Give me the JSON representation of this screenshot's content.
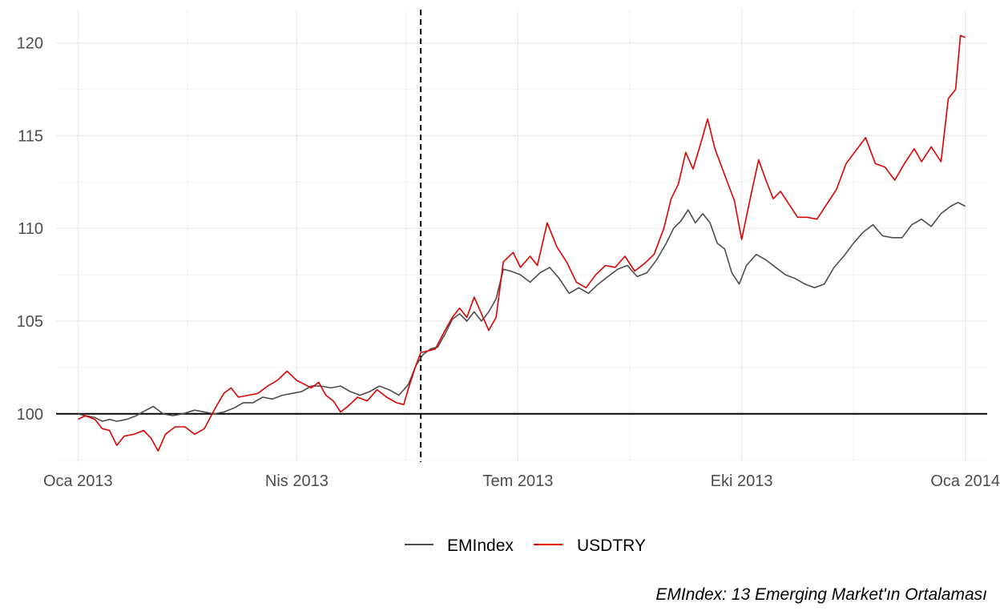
{
  "chart_data": {
    "type": "line",
    "title": "",
    "xlabel": "",
    "ylabel": "",
    "xlim": [
      "2012-12-23",
      "2014-01-10"
    ],
    "ylim": [
      97.4,
      121.8
    ],
    "y_ticks": [
      100,
      105,
      110,
      115,
      120
    ],
    "x_ticks": [
      {
        "date": "2013-01-01",
        "label": "Oca 2013"
      },
      {
        "date": "2013-04-01",
        "label": "Nis 2013"
      },
      {
        "date": "2013-07-01",
        "label": "Tem 2013"
      },
      {
        "date": "2013-10-01",
        "label": "Eki 2013"
      },
      {
        "date": "2014-01-01",
        "label": "Oca 2014"
      }
    ],
    "x_minor_ticks": [
      "2013-02-15",
      "2013-05-16",
      "2013-08-16",
      "2013-11-16"
    ],
    "grid": true,
    "reference_hline": 100,
    "reference_vline": "2013-05-22",
    "legend_position": "bottom",
    "caption": "EMIndex: 13 Emerging Market'ın Ortalaması",
    "series": [
      {
        "name": "EMIndex",
        "color": "#4d4d4d",
        "points": [
          [
            "2013-01-01",
            100.0
          ],
          [
            "2013-01-04",
            99.9
          ],
          [
            "2013-01-08",
            99.8
          ],
          [
            "2013-01-11",
            99.6
          ],
          [
            "2013-01-14",
            99.7
          ],
          [
            "2013-01-17",
            99.6
          ],
          [
            "2013-01-21",
            99.7
          ],
          [
            "2013-01-25",
            99.9
          ],
          [
            "2013-01-29",
            100.2
          ],
          [
            "2013-02-01",
            100.4
          ],
          [
            "2013-02-05",
            100.0
          ],
          [
            "2013-02-09",
            99.9
          ],
          [
            "2013-02-13",
            100.0
          ],
          [
            "2013-02-18",
            100.2
          ],
          [
            "2013-02-22",
            100.1
          ],
          [
            "2013-02-26",
            100.0
          ],
          [
            "2013-03-02",
            100.1
          ],
          [
            "2013-03-06",
            100.3
          ],
          [
            "2013-03-10",
            100.6
          ],
          [
            "2013-03-14",
            100.6
          ],
          [
            "2013-03-18",
            100.9
          ],
          [
            "2013-03-22",
            100.8
          ],
          [
            "2013-03-26",
            101.0
          ],
          [
            "2013-03-30",
            101.1
          ],
          [
            "2013-04-03",
            101.2
          ],
          [
            "2013-04-07",
            101.5
          ],
          [
            "2013-04-11",
            101.5
          ],
          [
            "2013-04-15",
            101.4
          ],
          [
            "2013-04-19",
            101.5
          ],
          [
            "2013-04-23",
            101.2
          ],
          [
            "2013-04-27",
            101.0
          ],
          [
            "2013-05-01",
            101.2
          ],
          [
            "2013-05-05",
            101.5
          ],
          [
            "2013-05-09",
            101.3
          ],
          [
            "2013-05-13",
            101.0
          ],
          [
            "2013-05-17",
            101.6
          ],
          [
            "2013-05-20",
            102.6
          ],
          [
            "2013-05-23",
            103.2
          ],
          [
            "2013-05-26",
            103.5
          ],
          [
            "2013-05-29",
            103.6
          ],
          [
            "2013-06-01",
            104.3
          ],
          [
            "2013-06-04",
            105.1
          ],
          [
            "2013-06-07",
            105.4
          ],
          [
            "2013-06-10",
            105.0
          ],
          [
            "2013-06-13",
            105.5
          ],
          [
            "2013-06-16",
            105.0
          ],
          [
            "2013-06-19",
            105.5
          ],
          [
            "2013-06-22",
            106.2
          ],
          [
            "2013-06-25",
            107.8
          ],
          [
            "2013-06-28",
            107.7
          ],
          [
            "2013-07-02",
            107.5
          ],
          [
            "2013-07-06",
            107.1
          ],
          [
            "2013-07-10",
            107.6
          ],
          [
            "2013-07-14",
            107.9
          ],
          [
            "2013-07-18",
            107.3
          ],
          [
            "2013-07-22",
            106.5
          ],
          [
            "2013-07-26",
            106.8
          ],
          [
            "2013-07-30",
            106.5
          ],
          [
            "2013-08-03",
            107.0
          ],
          [
            "2013-08-07",
            107.4
          ],
          [
            "2013-08-11",
            107.8
          ],
          [
            "2013-08-15",
            108.0
          ],
          [
            "2013-08-19",
            107.4
          ],
          [
            "2013-08-23",
            107.6
          ],
          [
            "2013-08-27",
            108.3
          ],
          [
            "2013-08-31",
            109.2
          ],
          [
            "2013-09-03",
            110.0
          ],
          [
            "2013-09-06",
            110.4
          ],
          [
            "2013-09-09",
            111.0
          ],
          [
            "2013-09-12",
            110.3
          ],
          [
            "2013-09-15",
            110.8
          ],
          [
            "2013-09-18",
            110.3
          ],
          [
            "2013-09-21",
            109.2
          ],
          [
            "2013-09-24",
            108.9
          ],
          [
            "2013-09-27",
            107.6
          ],
          [
            "2013-09-30",
            107.0
          ],
          [
            "2013-10-03",
            108.0
          ],
          [
            "2013-10-07",
            108.6
          ],
          [
            "2013-10-11",
            108.3
          ],
          [
            "2013-10-15",
            107.9
          ],
          [
            "2013-10-19",
            107.5
          ],
          [
            "2013-10-23",
            107.3
          ],
          [
            "2013-10-27",
            107.0
          ],
          [
            "2013-10-31",
            106.8
          ],
          [
            "2013-11-04",
            107.0
          ],
          [
            "2013-11-08",
            107.9
          ],
          [
            "2013-11-12",
            108.5
          ],
          [
            "2013-11-16",
            109.2
          ],
          [
            "2013-11-20",
            109.8
          ],
          [
            "2013-11-24",
            110.2
          ],
          [
            "2013-11-28",
            109.6
          ],
          [
            "2013-12-02",
            109.5
          ],
          [
            "2013-12-06",
            109.5
          ],
          [
            "2013-12-10",
            110.2
          ],
          [
            "2013-12-14",
            110.5
          ],
          [
            "2013-12-18",
            110.1
          ],
          [
            "2013-12-22",
            110.8
          ],
          [
            "2013-12-26",
            111.2
          ],
          [
            "2013-12-29",
            111.4
          ],
          [
            "2014-01-01",
            111.2
          ]
        ]
      },
      {
        "name": "USDTRY",
        "color": "#dd0000",
        "points": [
          [
            "2013-01-01",
            99.7
          ],
          [
            "2013-01-04",
            99.9
          ],
          [
            "2013-01-08",
            99.7
          ],
          [
            "2013-01-11",
            99.2
          ],
          [
            "2013-01-14",
            99.1
          ],
          [
            "2013-01-17",
            98.3
          ],
          [
            "2013-01-20",
            98.8
          ],
          [
            "2013-01-24",
            98.9
          ],
          [
            "2013-01-28",
            99.1
          ],
          [
            "2013-01-31",
            98.7
          ],
          [
            "2013-02-03",
            98.0
          ],
          [
            "2013-02-06",
            98.9
          ],
          [
            "2013-02-10",
            99.3
          ],
          [
            "2013-02-14",
            99.3
          ],
          [
            "2013-02-18",
            98.9
          ],
          [
            "2013-02-22",
            99.2
          ],
          [
            "2013-02-26",
            100.2
          ],
          [
            "2013-03-02",
            101.1
          ],
          [
            "2013-03-05",
            101.4
          ],
          [
            "2013-03-08",
            100.9
          ],
          [
            "2013-03-12",
            101.0
          ],
          [
            "2013-03-16",
            101.1
          ],
          [
            "2013-03-20",
            101.5
          ],
          [
            "2013-03-24",
            101.8
          ],
          [
            "2013-03-28",
            102.3
          ],
          [
            "2013-04-01",
            101.8
          ],
          [
            "2013-04-04",
            101.6
          ],
          [
            "2013-04-07",
            101.4
          ],
          [
            "2013-04-10",
            101.7
          ],
          [
            "2013-04-13",
            101.0
          ],
          [
            "2013-04-16",
            100.7
          ],
          [
            "2013-04-19",
            100.1
          ],
          [
            "2013-04-22",
            100.4
          ],
          [
            "2013-04-26",
            100.9
          ],
          [
            "2013-04-30",
            100.7
          ],
          [
            "2013-05-04",
            101.3
          ],
          [
            "2013-05-08",
            100.9
          ],
          [
            "2013-05-12",
            100.6
          ],
          [
            "2013-05-15",
            100.5
          ],
          [
            "2013-05-17",
            101.4
          ],
          [
            "2013-05-20",
            102.6
          ],
          [
            "2013-05-22",
            103.3
          ],
          [
            "2013-05-25",
            103.4
          ],
          [
            "2013-05-28",
            103.5
          ],
          [
            "2013-06-01",
            104.5
          ],
          [
            "2013-06-04",
            105.2
          ],
          [
            "2013-06-07",
            105.7
          ],
          [
            "2013-06-10",
            105.2
          ],
          [
            "2013-06-13",
            106.3
          ],
          [
            "2013-06-16",
            105.4
          ],
          [
            "2013-06-19",
            104.5
          ],
          [
            "2013-06-22",
            105.2
          ],
          [
            "2013-06-25",
            108.2
          ],
          [
            "2013-06-29",
            108.7
          ],
          [
            "2013-07-02",
            107.9
          ],
          [
            "2013-07-06",
            108.5
          ],
          [
            "2013-07-09",
            108.0
          ],
          [
            "2013-07-13",
            110.3
          ],
          [
            "2013-07-17",
            109.0
          ],
          [
            "2013-07-21",
            108.2
          ],
          [
            "2013-07-25",
            107.1
          ],
          [
            "2013-07-29",
            106.8
          ],
          [
            "2013-08-02",
            107.5
          ],
          [
            "2013-08-06",
            108.0
          ],
          [
            "2013-08-10",
            107.9
          ],
          [
            "2013-08-14",
            108.5
          ],
          [
            "2013-08-18",
            107.7
          ],
          [
            "2013-08-22",
            108.1
          ],
          [
            "2013-08-26",
            108.6
          ],
          [
            "2013-08-30",
            110.0
          ],
          [
            "2013-09-02",
            111.6
          ],
          [
            "2013-09-05",
            112.4
          ],
          [
            "2013-09-08",
            114.1
          ],
          [
            "2013-09-11",
            113.2
          ],
          [
            "2013-09-14",
            114.5
          ],
          [
            "2013-09-17",
            115.9
          ],
          [
            "2013-09-20",
            114.3
          ],
          [
            "2013-09-24",
            112.9
          ],
          [
            "2013-09-28",
            111.5
          ],
          [
            "2013-10-01",
            109.4
          ],
          [
            "2013-10-05",
            111.9
          ],
          [
            "2013-10-08",
            113.7
          ],
          [
            "2013-10-11",
            112.6
          ],
          [
            "2013-10-14",
            111.6
          ],
          [
            "2013-10-17",
            112.0
          ],
          [
            "2013-10-20",
            111.4
          ],
          [
            "2013-10-24",
            110.6
          ],
          [
            "2013-10-28",
            110.6
          ],
          [
            "2013-11-01",
            110.5
          ],
          [
            "2013-11-05",
            111.3
          ],
          [
            "2013-11-09",
            112.1
          ],
          [
            "2013-11-13",
            113.5
          ],
          [
            "2013-11-17",
            114.2
          ],
          [
            "2013-11-21",
            114.9
          ],
          [
            "2013-11-25",
            113.5
          ],
          [
            "2013-11-29",
            113.3
          ],
          [
            "2013-12-03",
            112.6
          ],
          [
            "2013-12-07",
            113.5
          ],
          [
            "2013-12-11",
            114.3
          ],
          [
            "2013-12-14",
            113.6
          ],
          [
            "2013-12-18",
            114.4
          ],
          [
            "2013-12-22",
            113.6
          ],
          [
            "2013-12-25",
            117.0
          ],
          [
            "2013-12-28",
            117.5
          ],
          [
            "2013-12-30",
            120.4
          ],
          [
            "2014-01-01",
            120.3
          ]
        ]
      }
    ]
  }
}
